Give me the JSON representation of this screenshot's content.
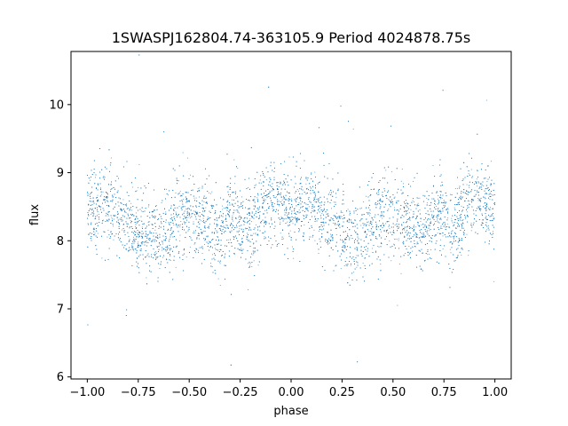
{
  "chart_data": {
    "type": "scatter",
    "title": "1SWASPJ162804.74-363105.9 Period 4024878.75s",
    "xlabel": "phase",
    "ylabel": "flux",
    "xlim": [
      -1.08,
      1.08
    ],
    "ylim": [
      5.97,
      10.78
    ],
    "x_ticks": [
      -1.0,
      -0.75,
      -0.5,
      -0.25,
      0.0,
      0.25,
      0.5,
      0.75,
      1.0
    ],
    "x_tick_labels": [
      "−1.00",
      "−0.75",
      "−0.50",
      "−0.25",
      "0.00",
      "0.25",
      "0.50",
      "0.75",
      "1.00"
    ],
    "y_ticks": [
      6,
      7,
      8,
      9,
      10
    ],
    "y_tick_labels": [
      "6",
      "7",
      "8",
      "9",
      "10"
    ],
    "grid": false,
    "point_color": "#1f77b4",
    "series": [
      {
        "phase_range": [
          -1.0,
          1.0
        ],
        "flux_profile": [
          [
            0.0,
            8.5
          ],
          [
            0.05,
            8.45
          ],
          [
            0.1,
            8.5
          ],
          [
            0.15,
            8.4
          ],
          [
            0.2,
            8.3
          ],
          [
            0.25,
            8.2
          ],
          [
            0.3,
            8.0
          ],
          [
            0.35,
            8.1
          ],
          [
            0.4,
            8.2
          ],
          [
            0.45,
            8.4
          ],
          [
            0.5,
            8.4
          ],
          [
            0.55,
            8.3
          ],
          [
            0.6,
            8.2
          ],
          [
            0.65,
            8.1
          ],
          [
            0.7,
            8.4
          ],
          [
            0.75,
            8.3
          ],
          [
            0.8,
            8.2
          ],
          [
            0.85,
            8.4
          ],
          [
            0.9,
            8.6
          ],
          [
            0.95,
            8.5
          ],
          [
            1.0,
            8.5
          ]
        ],
        "flux_scatter": 0.3,
        "n_points": 9000
      }
    ]
  }
}
